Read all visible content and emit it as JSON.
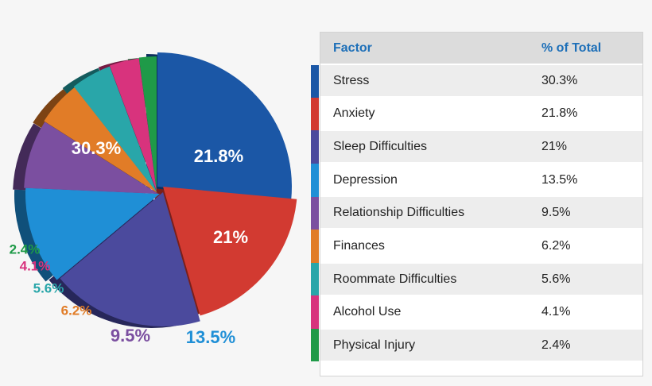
{
  "chart_data": {
    "type": "pie",
    "series": [
      {
        "label": "Stress",
        "value": 30.3,
        "display": "30.3%",
        "color": "#1b57a6",
        "shadow": "#0d2f5e"
      },
      {
        "label": "Anxiety",
        "value": 21.8,
        "display": "21.8%",
        "color": "#d23a31",
        "shadow": "#7a1f1a"
      },
      {
        "label": "Sleep Difficulties",
        "value": 21,
        "display": "21%",
        "color": "#4b4a9d",
        "shadow": "#27275a"
      },
      {
        "label": "Depression",
        "value": 13.5,
        "display": "13.5%",
        "color": "#1f8fd6",
        "shadow": "#10507a"
      },
      {
        "label": "Relationship Difficulties",
        "value": 9.5,
        "display": "9.5%",
        "color": "#7b4fa0",
        "shadow": "#432a58"
      },
      {
        "label": "Finances",
        "value": 6.2,
        "display": "6.2%",
        "color": "#e17c27",
        "shadow": "#7c4314"
      },
      {
        "label": "Roommate Difficulties",
        "value": 5.6,
        "display": "5.6%",
        "color": "#29a6a9",
        "shadow": "#145b5d"
      },
      {
        "label": "Alcohol Use",
        "value": 4.1,
        "display": "4.1%",
        "color": "#d8337d",
        "shadow": "#761a43"
      },
      {
        "label": "Physical Injury",
        "value": 2.4,
        "display": "2.4%",
        "color": "#1f9a48",
        "shadow": "#0f5427"
      }
    ]
  },
  "table": {
    "header_factor": "Factor",
    "header_pct": "% of Total",
    "rows": [
      {
        "factor": " Stress",
        "pct": "30.3%"
      },
      {
        "factor": "Anxiety",
        "pct": "21.8%"
      },
      {
        "factor": "Sleep Difficulties",
        "pct": "21%"
      },
      {
        "factor": "Depression",
        "pct": "13.5%"
      },
      {
        "factor": "Relationship Difficulties",
        "pct": "9.5%"
      },
      {
        "factor": "Finances",
        "pct": "6.2%"
      },
      {
        "factor": "Roommate Difficulties",
        "pct": "5.6%"
      },
      {
        "factor": "Alcohol Use",
        "pct": "4.1%"
      },
      {
        "factor": "Physical Injury",
        "pct": "2.4%"
      }
    ]
  }
}
